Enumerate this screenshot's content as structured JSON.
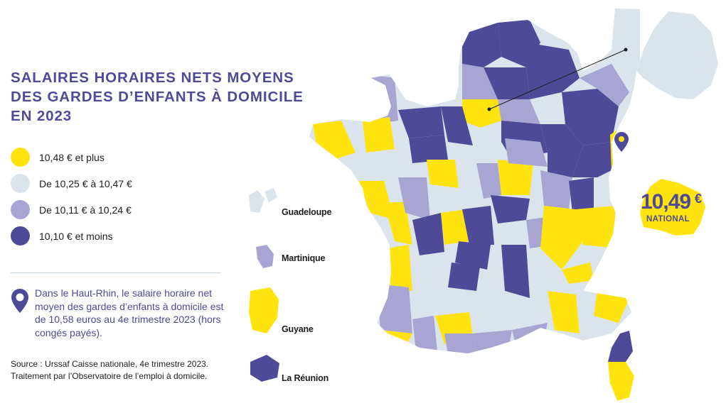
{
  "title": {
    "line1": "SALAIRES HORAIRES NETS MOYENS",
    "line2": "DES GARDES D’ENFANTS À DOMICILE",
    "line3": "EN 2023"
  },
  "legend": [
    {
      "label": "10,48 € et plus",
      "color": "#ffe30f"
    },
    {
      "label": "De 10,25 € à 10,47 €",
      "color": "#dbe3ec"
    },
    {
      "label": "De 10,11 € à 10,24 €",
      "color": "#a8a5d2"
    },
    {
      "label": "10,10 € et moins",
      "color": "#4f4a98"
    }
  ],
  "note": "Dans le Haut-Rhin, le salaire horaire net moyen des gardes d’enfants à domicile est de 10,58 euros au 4e trimestre 2023 (hors congés payés).",
  "source": {
    "line1": "Source : Urssaf Caisse nationale, 4e trimestre 2023.",
    "line2": "Traitement par l’Observatoire de l’emploi à domicile."
  },
  "overseas": [
    {
      "name": "Guadeloupe",
      "category": "light"
    },
    {
      "name": "Martinique",
      "category": "lavender"
    },
    {
      "name": "Guyane",
      "category": "yellow"
    },
    {
      "name": "La Réunion",
      "category": "purple"
    }
  ],
  "national": {
    "value": "10,49",
    "currency": "€",
    "label": "NATIONAL",
    "color": "#ffe30f"
  },
  "map_colors": {
    "yellow": "#ffe30f",
    "light": "#dbe3ec",
    "lavender": "#a8a5d2",
    "purple": "#4f4a98",
    "accent": "#4f4a98"
  },
  "icons": {
    "note_pin": "map-pin-icon",
    "map_pin": "map-pin-icon"
  }
}
